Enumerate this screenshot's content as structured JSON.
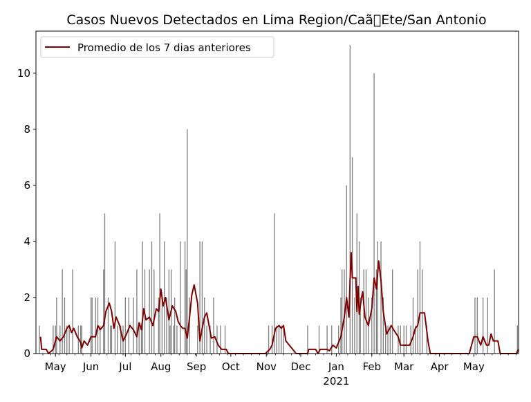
{
  "chart_data": {
    "type": "bar",
    "title": "Casos Nuevos Detectados en Lima Region/Caã\u0000Ete/San Antonio",
    "xlabel": "",
    "ylabel": "",
    "ylim": [
      0,
      11.5
    ],
    "y_ticks": [
      "0",
      "2",
      "4",
      "6",
      "8",
      "10"
    ],
    "x_start": "2020-04-14",
    "x_end": "2021-06-09",
    "x_ticks": [
      {
        "label": "May",
        "date": "2020-05-01"
      },
      {
        "label": "Jun",
        "date": "2020-06-01"
      },
      {
        "label": "Jul",
        "date": "2020-07-01"
      },
      {
        "label": "Aug",
        "date": "2020-08-01"
      },
      {
        "label": "Sep",
        "date": "2020-09-01"
      },
      {
        "label": "Oct",
        "date": "2020-10-01"
      },
      {
        "label": "Nov",
        "date": "2020-11-01"
      },
      {
        "label": "Dec",
        "date": "2020-12-01"
      },
      {
        "label": "Jan",
        "date": "2021-01-01",
        "sublabel": "2021"
      },
      {
        "label": "Feb",
        "date": "2021-02-01"
      },
      {
        "label": "Mar",
        "date": "2021-03-01"
      },
      {
        "label": "Apr",
        "date": "2021-04-01"
      },
      {
        "label": "May",
        "date": "2021-05-01"
      }
    ],
    "bar_color": "#808080",
    "line_color": "#800000",
    "legend": {
      "placement": "upper-left",
      "entries": [
        "Promedio de los 7 dias anteriores"
      ]
    },
    "series": [
      {
        "type": "bar",
        "points": [
          [
            "2020-04-17",
            1
          ],
          [
            "2020-04-29",
            1
          ],
          [
            "2020-05-01",
            1
          ],
          [
            "2020-05-02",
            2
          ],
          [
            "2020-05-05",
            1
          ],
          [
            "2020-05-07",
            3
          ],
          [
            "2020-05-09",
            2
          ],
          [
            "2020-05-11",
            1
          ],
          [
            "2020-05-13",
            1
          ],
          [
            "2020-05-16",
            3
          ],
          [
            "2020-05-21",
            1
          ],
          [
            "2020-05-23",
            1
          ],
          [
            "2020-05-24",
            1
          ],
          [
            "2020-06-01",
            2
          ],
          [
            "2020-06-02",
            2
          ],
          [
            "2020-06-05",
            2
          ],
          [
            "2020-06-07",
            2
          ],
          [
            "2020-06-09",
            1
          ],
          [
            "2020-06-12",
            3
          ],
          [
            "2020-06-13",
            5
          ],
          [
            "2020-06-16",
            2
          ],
          [
            "2020-06-18",
            1
          ],
          [
            "2020-06-19",
            1
          ],
          [
            "2020-06-22",
            4
          ],
          [
            "2020-06-24",
            1
          ],
          [
            "2020-06-27",
            1
          ],
          [
            "2020-06-29",
            1
          ],
          [
            "2020-07-01",
            2
          ],
          [
            "2020-07-04",
            2
          ],
          [
            "2020-07-08",
            2
          ],
          [
            "2020-07-11",
            3
          ],
          [
            "2020-07-13",
            1
          ],
          [
            "2020-07-15",
            1
          ],
          [
            "2020-07-16",
            4
          ],
          [
            "2020-07-18",
            3
          ],
          [
            "2020-07-22",
            3
          ],
          [
            "2020-07-24",
            4
          ],
          [
            "2020-07-26",
            3
          ],
          [
            "2020-07-30",
            2
          ],
          [
            "2020-07-31",
            5
          ],
          [
            "2020-08-02",
            2
          ],
          [
            "2020-08-04",
            4
          ],
          [
            "2020-08-06",
            2
          ],
          [
            "2020-08-08",
            3
          ],
          [
            "2020-08-09",
            1
          ],
          [
            "2020-08-10",
            3
          ],
          [
            "2020-08-12",
            1
          ],
          [
            "2020-08-13",
            2
          ],
          [
            "2020-08-15",
            1
          ],
          [
            "2020-08-18",
            4
          ],
          [
            "2020-08-22",
            4
          ],
          [
            "2020-08-23",
            3
          ],
          [
            "2020-08-24",
            8
          ],
          [
            "2020-08-26",
            2
          ],
          [
            "2020-09-02",
            1
          ],
          [
            "2020-09-04",
            4
          ],
          [
            "2020-09-06",
            4
          ],
          [
            "2020-09-08",
            2
          ],
          [
            "2020-09-10",
            1
          ],
          [
            "2020-09-13",
            1
          ],
          [
            "2020-09-16",
            2
          ],
          [
            "2020-09-19",
            1
          ],
          [
            "2020-09-22",
            1
          ],
          [
            "2020-09-26",
            1
          ],
          [
            "2020-11-03",
            1
          ],
          [
            "2020-11-06",
            1
          ],
          [
            "2020-11-08",
            5
          ],
          [
            "2020-11-10",
            1
          ],
          [
            "2020-11-12",
            1
          ],
          [
            "2020-11-14",
            1
          ],
          [
            "2020-11-16",
            1
          ],
          [
            "2020-12-07",
            1
          ],
          [
            "2020-12-17",
            1
          ],
          [
            "2020-12-24",
            1
          ],
          [
            "2020-12-28",
            1
          ],
          [
            "2021-01-03",
            1
          ],
          [
            "2021-01-05",
            2
          ],
          [
            "2021-01-06",
            3
          ],
          [
            "2021-01-08",
            3
          ],
          [
            "2021-01-10",
            6
          ],
          [
            "2021-01-13",
            11
          ],
          [
            "2021-01-15",
            7
          ],
          [
            "2021-01-17",
            2
          ],
          [
            "2021-01-19",
            5
          ],
          [
            "2021-01-21",
            4
          ],
          [
            "2021-01-22",
            2
          ],
          [
            "2021-01-25",
            3
          ],
          [
            "2021-01-27",
            3
          ],
          [
            "2021-01-29",
            2
          ],
          [
            "2021-02-01",
            2
          ],
          [
            "2021-02-03",
            10
          ],
          [
            "2021-02-05",
            3
          ],
          [
            "2021-02-06",
            4
          ],
          [
            "2021-02-09",
            4
          ],
          [
            "2021-02-11",
            2
          ],
          [
            "2021-02-13",
            1
          ],
          [
            "2021-02-15",
            1
          ],
          [
            "2021-02-17",
            1
          ],
          [
            "2021-02-19",
            3
          ],
          [
            "2021-02-24",
            1
          ],
          [
            "2021-02-26",
            1
          ],
          [
            "2021-03-01",
            1
          ],
          [
            "2021-03-03",
            1
          ],
          [
            "2021-03-07",
            1
          ],
          [
            "2021-03-09",
            2
          ],
          [
            "2021-03-11",
            1
          ],
          [
            "2021-03-13",
            3
          ],
          [
            "2021-03-15",
            4
          ],
          [
            "2021-03-17",
            3
          ],
          [
            "2021-03-21",
            1
          ],
          [
            "2021-05-02",
            2
          ],
          [
            "2021-05-04",
            2
          ],
          [
            "2021-05-09",
            2
          ],
          [
            "2021-05-13",
            2
          ],
          [
            "2021-05-19",
            3
          ],
          [
            "2021-06-08",
            1
          ]
        ]
      },
      {
        "type": "line",
        "name": "Promedio de los 7 dias anteriores",
        "points": [
          [
            "2020-04-18",
            0.6
          ],
          [
            "2020-04-19",
            0.15
          ],
          [
            "2020-04-23",
            0.15
          ],
          [
            "2020-04-25",
            0
          ],
          [
            "2020-04-29",
            0.15
          ],
          [
            "2020-05-02",
            0.6
          ],
          [
            "2020-05-05",
            0.45
          ],
          [
            "2020-05-08",
            0.6
          ],
          [
            "2020-05-11",
            0.9
          ],
          [
            "2020-05-13",
            1.0
          ],
          [
            "2020-05-15",
            0.75
          ],
          [
            "2020-05-17",
            0.9
          ],
          [
            "2020-05-20",
            0.6
          ],
          [
            "2020-05-23",
            0.4
          ],
          [
            "2020-05-24",
            0.2
          ],
          [
            "2020-05-26",
            0.45
          ],
          [
            "2020-05-29",
            0.3
          ],
          [
            "2020-06-01",
            0.6
          ],
          [
            "2020-06-05",
            0.6
          ],
          [
            "2020-06-07",
            1.0
          ],
          [
            "2020-06-09",
            0.85
          ],
          [
            "2020-06-12",
            1.0
          ],
          [
            "2020-06-14",
            1.5
          ],
          [
            "2020-06-17",
            1.8
          ],
          [
            "2020-06-19",
            1.5
          ],
          [
            "2020-06-21",
            0.9
          ],
          [
            "2020-06-23",
            1.3
          ],
          [
            "2020-06-26",
            1.0
          ],
          [
            "2020-06-29",
            0.45
          ],
          [
            "2020-07-02",
            0.7
          ],
          [
            "2020-07-05",
            1.0
          ],
          [
            "2020-07-08",
            0.85
          ],
          [
            "2020-07-11",
            0.6
          ],
          [
            "2020-07-13",
            1.1
          ],
          [
            "2020-07-15",
            0.85
          ],
          [
            "2020-07-17",
            1.6
          ],
          [
            "2020-07-19",
            1.2
          ],
          [
            "2020-07-22",
            1.3
          ],
          [
            "2020-07-25",
            1.0
          ],
          [
            "2020-07-28",
            1.6
          ],
          [
            "2020-07-30",
            1.5
          ],
          [
            "2020-08-01",
            2.3
          ],
          [
            "2020-08-03",
            1.7
          ],
          [
            "2020-08-05",
            2.0
          ],
          [
            "2020-08-08",
            1.2
          ],
          [
            "2020-08-11",
            1.7
          ],
          [
            "2020-08-14",
            1.5
          ],
          [
            "2020-08-16",
            1.15
          ],
          [
            "2020-08-18",
            1.0
          ],
          [
            "2020-08-20",
            0.9
          ],
          [
            "2020-08-22",
            0.9
          ],
          [
            "2020-08-24",
            0.55
          ],
          [
            "2020-08-26",
            1.3
          ],
          [
            "2020-08-28",
            2.1
          ],
          [
            "2020-08-30",
            2.45
          ],
          [
            "2020-09-02",
            1.8
          ],
          [
            "2020-09-04",
            0.45
          ],
          [
            "2020-09-06",
            0.9
          ],
          [
            "2020-09-08",
            1.3
          ],
          [
            "2020-09-10",
            1.45
          ],
          [
            "2020-09-12",
            1.0
          ],
          [
            "2020-09-14",
            0.55
          ],
          [
            "2020-09-17",
            0.6
          ],
          [
            "2020-09-20",
            0.3
          ],
          [
            "2020-09-23",
            0.15
          ],
          [
            "2020-09-27",
            0.15
          ],
          [
            "2020-09-29",
            0
          ],
          [
            "2020-10-31",
            0
          ],
          [
            "2020-11-04",
            0.15
          ],
          [
            "2020-11-06",
            0.3
          ],
          [
            "2020-11-09",
            0.9
          ],
          [
            "2020-11-12",
            1.0
          ],
          [
            "2020-11-14",
            0.9
          ],
          [
            "2020-11-16",
            1.0
          ],
          [
            "2020-11-18",
            0.45
          ],
          [
            "2020-11-21",
            0.3
          ],
          [
            "2020-11-24",
            0.15
          ],
          [
            "2020-11-27",
            0
          ],
          [
            "2020-12-07",
            0
          ],
          [
            "2020-12-08",
            0.15
          ],
          [
            "2020-12-14",
            0.15
          ],
          [
            "2020-12-16",
            0
          ],
          [
            "2020-12-18",
            0.15
          ],
          [
            "2020-12-24",
            0.15
          ],
          [
            "2020-12-26",
            0.1
          ],
          [
            "2020-12-29",
            0.3
          ],
          [
            "2021-01-01",
            0.2
          ],
          [
            "2021-01-05",
            0.6
          ],
          [
            "2021-01-08",
            1.3
          ],
          [
            "2021-01-10",
            2.0
          ],
          [
            "2021-01-12",
            1.3
          ],
          [
            "2021-01-13",
            2.6
          ],
          [
            "2021-01-14",
            3.6
          ],
          [
            "2021-01-15",
            2.7
          ],
          [
            "2021-01-18",
            2.7
          ],
          [
            "2021-01-19",
            1.5
          ],
          [
            "2021-01-20",
            2.4
          ],
          [
            "2021-01-21",
            1.4
          ],
          [
            "2021-01-23",
            2.0
          ],
          [
            "2021-01-24",
            2.2
          ],
          [
            "2021-01-26",
            1.3
          ],
          [
            "2021-01-29",
            1.0
          ],
          [
            "2021-02-01",
            1.6
          ],
          [
            "2021-02-03",
            2.7
          ],
          [
            "2021-02-05",
            2.3
          ],
          [
            "2021-02-07",
            3.3
          ],
          [
            "2021-02-09",
            2.6
          ],
          [
            "2021-02-11",
            1.5
          ],
          [
            "2021-02-14",
            0.7
          ],
          [
            "2021-02-16",
            0.85
          ],
          [
            "2021-02-18",
            1.0
          ],
          [
            "2021-02-20",
            0.85
          ],
          [
            "2021-02-24",
            0.6
          ],
          [
            "2021-02-26",
            0.3
          ],
          [
            "2021-03-06",
            0.3
          ],
          [
            "2021-03-09",
            0.6
          ],
          [
            "2021-03-11",
            0.9
          ],
          [
            "2021-03-13",
            1.0
          ],
          [
            "2021-03-15",
            1.45
          ],
          [
            "2021-03-19",
            1.45
          ],
          [
            "2021-03-22",
            0.45
          ],
          [
            "2021-03-24",
            0
          ],
          [
            "2021-04-27",
            0
          ],
          [
            "2021-05-01",
            0.6
          ],
          [
            "2021-05-04",
            0.6
          ],
          [
            "2021-05-07",
            0.3
          ],
          [
            "2021-05-09",
            0.6
          ],
          [
            "2021-05-12",
            0.3
          ],
          [
            "2021-05-14",
            0.3
          ],
          [
            "2021-05-16",
            0.7
          ],
          [
            "2021-05-18",
            0.45
          ],
          [
            "2021-05-22",
            0.45
          ],
          [
            "2021-05-24",
            0
          ],
          [
            "2021-06-07",
            0
          ],
          [
            "2021-06-09",
            0.15
          ]
        ]
      }
    ]
  }
}
